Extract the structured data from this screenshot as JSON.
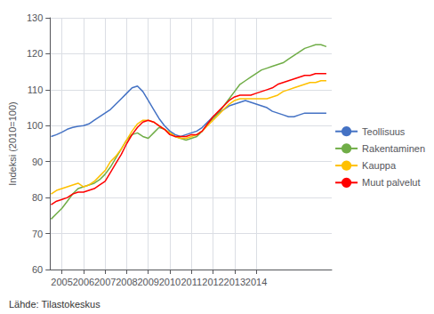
{
  "chart_data": {
    "type": "line",
    "y_label": "Indeksi (2010=100)",
    "annotations": [
      "Lähde: Tilastokeskus"
    ],
    "x": [
      2004.5,
      2004.75,
      2005,
      2005.25,
      2005.5,
      2005.75,
      2006,
      2006.25,
      2006.5,
      2006.75,
      2007,
      2007.25,
      2007.5,
      2007.75,
      2008,
      2008.25,
      2008.5,
      2008.75,
      2009,
      2009.25,
      2009.5,
      2009.75,
      2010,
      2010.25,
      2010.5,
      2010.75,
      2011,
      2011.25,
      2011.5,
      2011.75,
      2012,
      2012.25,
      2012.5,
      2012.75,
      2013,
      2013.25,
      2013.5,
      2013.75,
      2014,
      2014.25,
      2014.5,
      2014.75,
      2015,
      2015.25,
      2015.5,
      2015.75,
      2016,
      2016.25,
      2016.5,
      2016.75,
      2017,
      2017.25
    ],
    "series": [
      {
        "name": "Teollisuus",
        "color": "#4472c4",
        "values": [
          97.0,
          97.5,
          98.2,
          99.0,
          99.5,
          99.8,
          100.0,
          100.5,
          101.5,
          102.5,
          103.5,
          104.5,
          106.0,
          107.5,
          109.0,
          110.5,
          111.0,
          109.5,
          107.0,
          104.5,
          102.0,
          100.0,
          98.5,
          97.5,
          97.0,
          97.5,
          98.0,
          98.5,
          99.5,
          101.0,
          102.5,
          103.5,
          104.5,
          105.5,
          106.0,
          106.5,
          107.0,
          106.5,
          106.0,
          105.5,
          105.0,
          104.0,
          103.5,
          103.0,
          102.5,
          102.5,
          103.0,
          103.5,
          103.5,
          103.5,
          103.5,
          103.5
        ]
      },
      {
        "name": "Rakentaminen",
        "color": "#70ad47",
        "values": [
          74.0,
          75.5,
          77.0,
          79.0,
          81.0,
          82.5,
          83.0,
          83.5,
          84.0,
          85.0,
          86.5,
          88.5,
          91.0,
          93.5,
          96.0,
          97.5,
          98.0,
          97.0,
          96.5,
          98.0,
          99.5,
          99.0,
          98.0,
          97.0,
          96.5,
          96.0,
          96.5,
          97.0,
          98.5,
          100.5,
          102.0,
          103.5,
          105.5,
          107.5,
          109.5,
          111.5,
          112.5,
          113.5,
          114.5,
          115.5,
          116.0,
          116.5,
          117.0,
          117.5,
          118.5,
          119.5,
          120.5,
          121.5,
          122.0,
          122.5,
          122.5,
          122.0
        ]
      },
      {
        "name": "Kauppa",
        "color": "#ffc000",
        "values": [
          81.0,
          82.0,
          82.5,
          83.0,
          83.5,
          84.0,
          83.0,
          83.5,
          84.5,
          86.0,
          87.5,
          90.0,
          91.5,
          93.5,
          96.0,
          98.5,
          100.5,
          101.5,
          101.5,
          101.0,
          100.0,
          99.0,
          98.0,
          97.0,
          96.5,
          96.5,
          97.0,
          97.5,
          98.5,
          100.0,
          101.5,
          103.0,
          104.5,
          106.0,
          107.0,
          107.5,
          107.5,
          107.5,
          107.5,
          107.5,
          107.5,
          108.0,
          108.5,
          109.5,
          110.0,
          110.5,
          111.0,
          111.5,
          112.0,
          112.0,
          112.5,
          112.5
        ]
      },
      {
        "name": "Muut palvelut",
        "color": "#ff0000",
        "values": [
          78.0,
          79.0,
          79.5,
          80.0,
          81.0,
          81.5,
          81.5,
          82.0,
          82.5,
          83.5,
          84.5,
          87.0,
          89.5,
          92.0,
          95.0,
          97.5,
          99.5,
          101.0,
          101.5,
          101.0,
          100.0,
          99.0,
          97.5,
          97.0,
          97.0,
          97.0,
          97.5,
          97.5,
          98.5,
          100.5,
          102.5,
          104.0,
          105.5,
          107.0,
          108.0,
          108.5,
          108.5,
          108.5,
          109.0,
          109.5,
          110.0,
          110.5,
          111.5,
          112.0,
          112.5,
          113.0,
          113.5,
          114.0,
          114.0,
          114.5,
          114.5,
          114.5
        ]
      }
    ],
    "xlim": [
      2004.45,
      2017.5
    ],
    "xticks": [
      2005,
      2006,
      2007,
      2008,
      2009,
      2010,
      2011,
      2012,
      2013,
      2014
    ],
    "ylim": [
      60,
      130
    ],
    "yticks": [
      60,
      70,
      80,
      90,
      100,
      110,
      120,
      130
    ],
    "grid": true,
    "legend": "right"
  }
}
